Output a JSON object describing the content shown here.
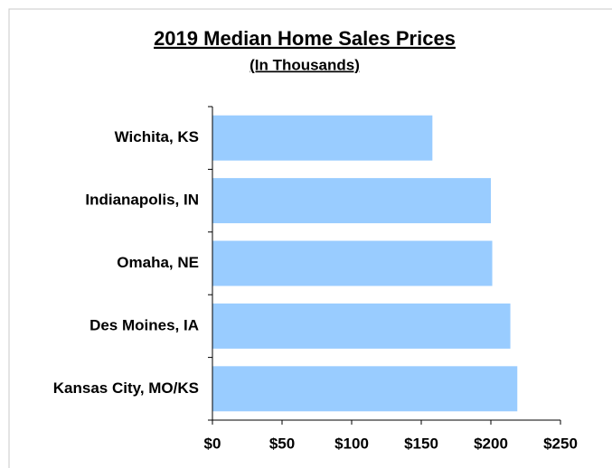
{
  "chart_data": {
    "type": "bar",
    "orientation": "horizontal",
    "title": "2019 Median Home Sales Prices",
    "subtitle": "(In Thousands)",
    "categories": [
      "Wichita, KS",
      "Indianapolis, IN",
      "Omaha, NE",
      "Des Moines, IA",
      "Kansas City, MO/KS"
    ],
    "values": [
      158,
      200,
      201,
      214,
      219
    ],
    "color": "#99ccff",
    "xlim": [
      0,
      250
    ],
    "xticks": [
      {
        "value": 0,
        "label": "$0"
      },
      {
        "value": 50,
        "label": "$50"
      },
      {
        "value": 100,
        "label": "$100"
      },
      {
        "value": 150,
        "label": "$150"
      },
      {
        "value": 200,
        "label": "$200"
      },
      {
        "value": 250,
        "label": "$250"
      }
    ],
    "grid": false
  }
}
